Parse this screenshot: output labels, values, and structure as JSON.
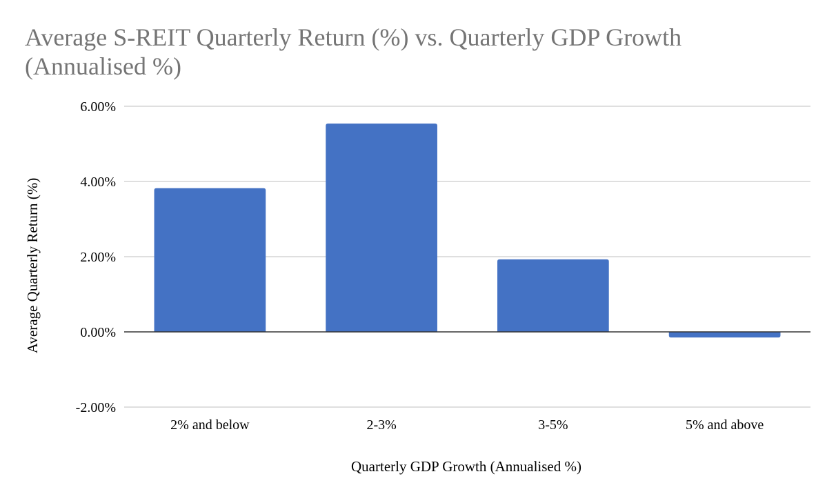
{
  "chart_data": {
    "type": "bar",
    "title_lines": [
      "Average S-REIT Quarterly Return (%) vs. Quarterly GDP Growth",
      "(Annualised %)"
    ],
    "xlabel": "Quarterly GDP Growth (Annualised %)",
    "ylabel": "Average Quarterly Return (%)",
    "categories": [
      "2% and below",
      "2-3%",
      "3-5%",
      "5% and above"
    ],
    "values": [
      3.82,
      5.54,
      1.93,
      -0.15
    ],
    "ylim": [
      -2,
      6
    ],
    "yticks": [
      6,
      4,
      2,
      0,
      -2
    ],
    "ytick_labels": [
      "6.00%",
      "4.00%",
      "2.00%",
      "0.00%",
      "-2.00%"
    ],
    "grid": true,
    "legend": "none",
    "bar_color": "#4472c4",
    "title_color": "#757575"
  }
}
